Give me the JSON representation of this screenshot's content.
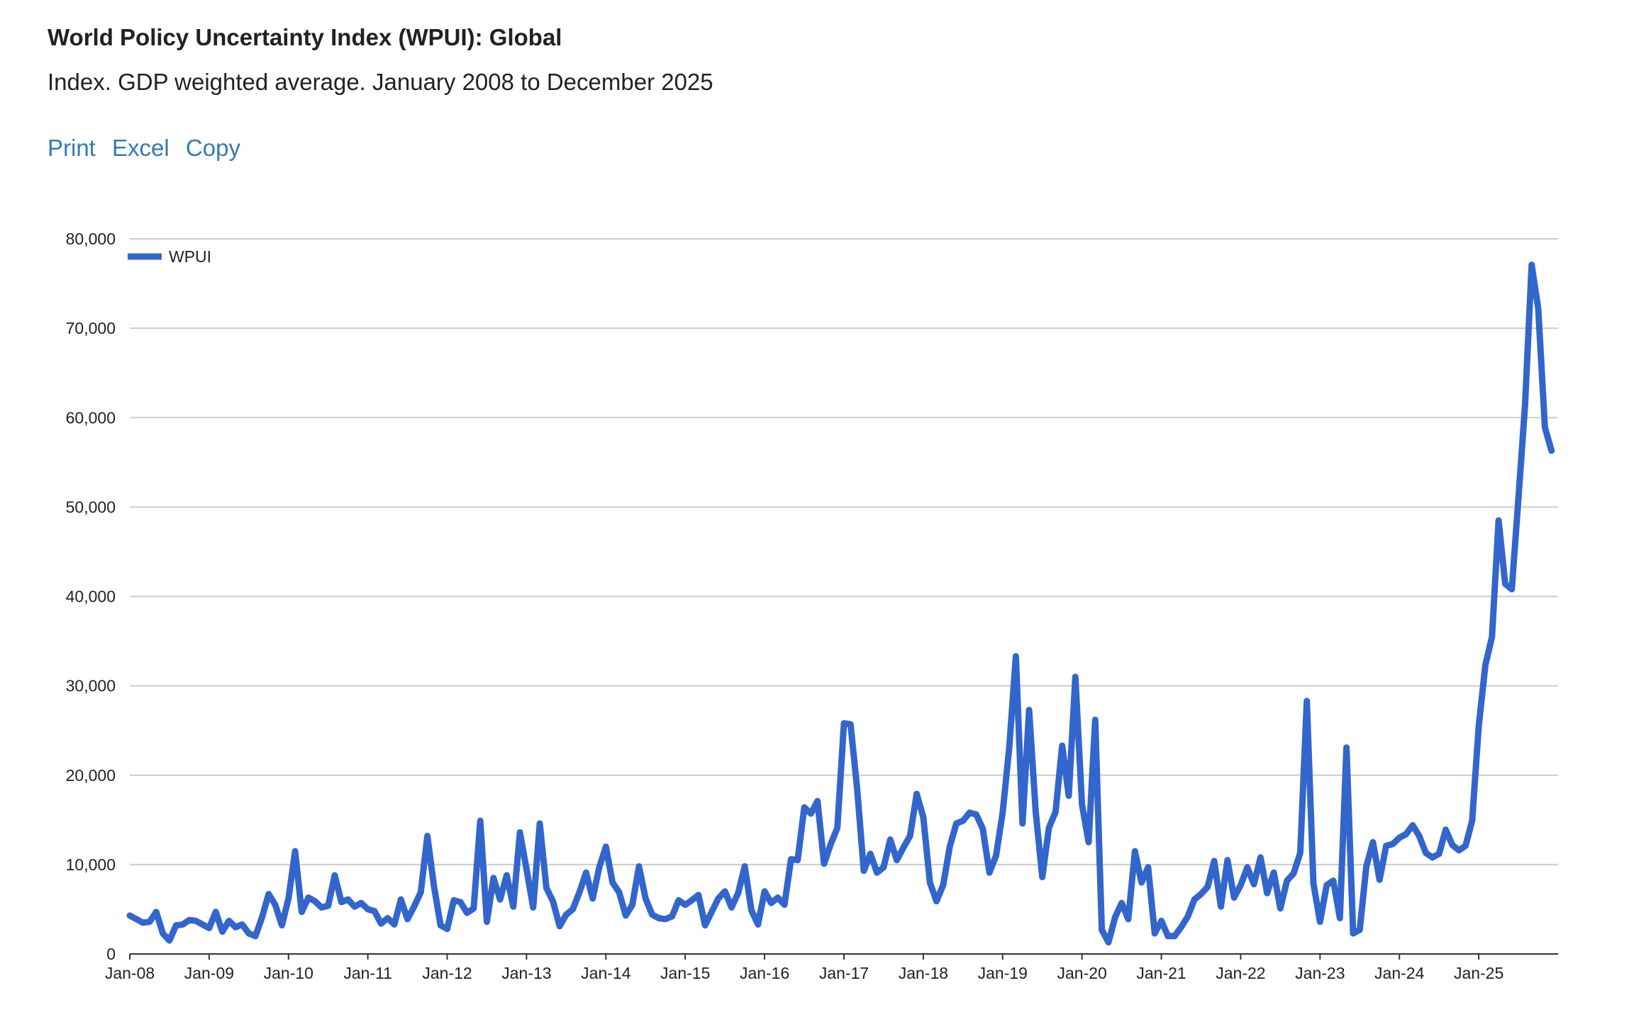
{
  "header": {
    "title": "World Policy Uncertainty Index (WPUI): Global",
    "subtitle": "Index. GDP weighted average. January 2008 to December 2025"
  },
  "toolbar": {
    "print_label": "Print",
    "excel_label": "Excel",
    "copy_label": "Copy"
  },
  "colors": {
    "series": "#3366cc",
    "gridline": "#cccccc",
    "axis": "#333333",
    "link": "#337ab7"
  },
  "chart_data": {
    "type": "line",
    "title": "",
    "xlabel": "",
    "ylabel": "",
    "ylim": [
      0,
      80000
    ],
    "y_ticks": [
      0,
      10000,
      20000,
      30000,
      40000,
      50000,
      60000,
      70000,
      80000
    ],
    "y_tick_labels": [
      "0",
      "10,000",
      "20,000",
      "30,000",
      "40,000",
      "50,000",
      "60,000",
      "70,000",
      "80,000"
    ],
    "x_tick_labels": [
      "Jan-08",
      "Jan-09",
      "Jan-10",
      "Jan-11",
      "Jan-12",
      "Jan-13",
      "Jan-14",
      "Jan-15",
      "Jan-16",
      "Jan-17",
      "Jan-18",
      "Jan-19",
      "Jan-20",
      "Jan-21",
      "Jan-22",
      "Jan-23",
      "Jan-24",
      "Jan-25"
    ],
    "x_start": "Jan-08",
    "x_end": "Dec-25",
    "grid": true,
    "legend_position": "top-left",
    "series": [
      {
        "name": "WPUI",
        "color": "#3366cc",
        "values": [
          4300,
          3900,
          3500,
          3600,
          4700,
          2300,
          1500,
          3200,
          3300,
          3800,
          3700,
          3300,
          2900,
          4700,
          2500,
          3700,
          3000,
          3300,
          2300,
          2000,
          4100,
          6700,
          5500,
          3200,
          6200,
          11500,
          4700,
          6300,
          5900,
          5200,
          5400,
          8800,
          5800,
          6100,
          5300,
          5700,
          5000,
          4800,
          3400,
          4000,
          3300,
          6100,
          3900,
          5300,
          6900,
          13200,
          7600,
          3200,
          2800,
          6000,
          5800,
          4600,
          5100,
          14900,
          3600,
          8500,
          6100,
          8800,
          5300,
          13600,
          9500,
          5200,
          14600,
          7400,
          5900,
          3100,
          4400,
          5000,
          6900,
          9100,
          6200,
          9700,
          12000,
          8000,
          6900,
          4300,
          5500,
          9800,
          6200,
          4400,
          4000,
          3900,
          4200,
          6000,
          5500,
          6000,
          6600,
          3200,
          4700,
          6200,
          7000,
          5200,
          6800,
          9800,
          4900,
          3300,
          7000,
          5700,
          6300,
          5500,
          10600,
          10500,
          16400,
          15700,
          17100,
          10100,
          12300,
          14100,
          25800,
          25700,
          18500,
          9300,
          11200,
          9100,
          9700,
          12800,
          10500,
          11900,
          13200,
          17900,
          15300,
          8000,
          5900,
          7700,
          12000,
          14600,
          14900,
          15800,
          15600,
          14000,
          9100,
          11000,
          15800,
          23100,
          33300,
          14600,
          27300,
          15900,
          8600,
          14100,
          15900,
          23300,
          17700,
          31000,
          16700,
          12500,
          26200,
          2700,
          1300,
          4100,
          5700,
          3900,
          11500,
          8000,
          9700,
          2300,
          3700,
          2000,
          2000,
          3000,
          4200,
          6100,
          6700,
          7500,
          10400,
          5300,
          10500,
          6300,
          7700,
          9700,
          7800,
          10800,
          6800,
          9100,
          5100,
          8200,
          9000,
          11300,
          28300,
          7900,
          3600,
          7700,
          8200,
          4000,
          23100,
          2300,
          2700,
          9800,
          12500,
          8300,
          12100,
          12300,
          13000,
          13400,
          14400,
          13200,
          11300,
          10800,
          11200,
          13900,
          12200,
          11600,
          12100,
          14900,
          25500,
          32300,
          35500,
          48500,
          41400,
          40800,
          51000,
          61400,
          77100,
          72200,
          58900,
          56300
        ]
      }
    ]
  }
}
